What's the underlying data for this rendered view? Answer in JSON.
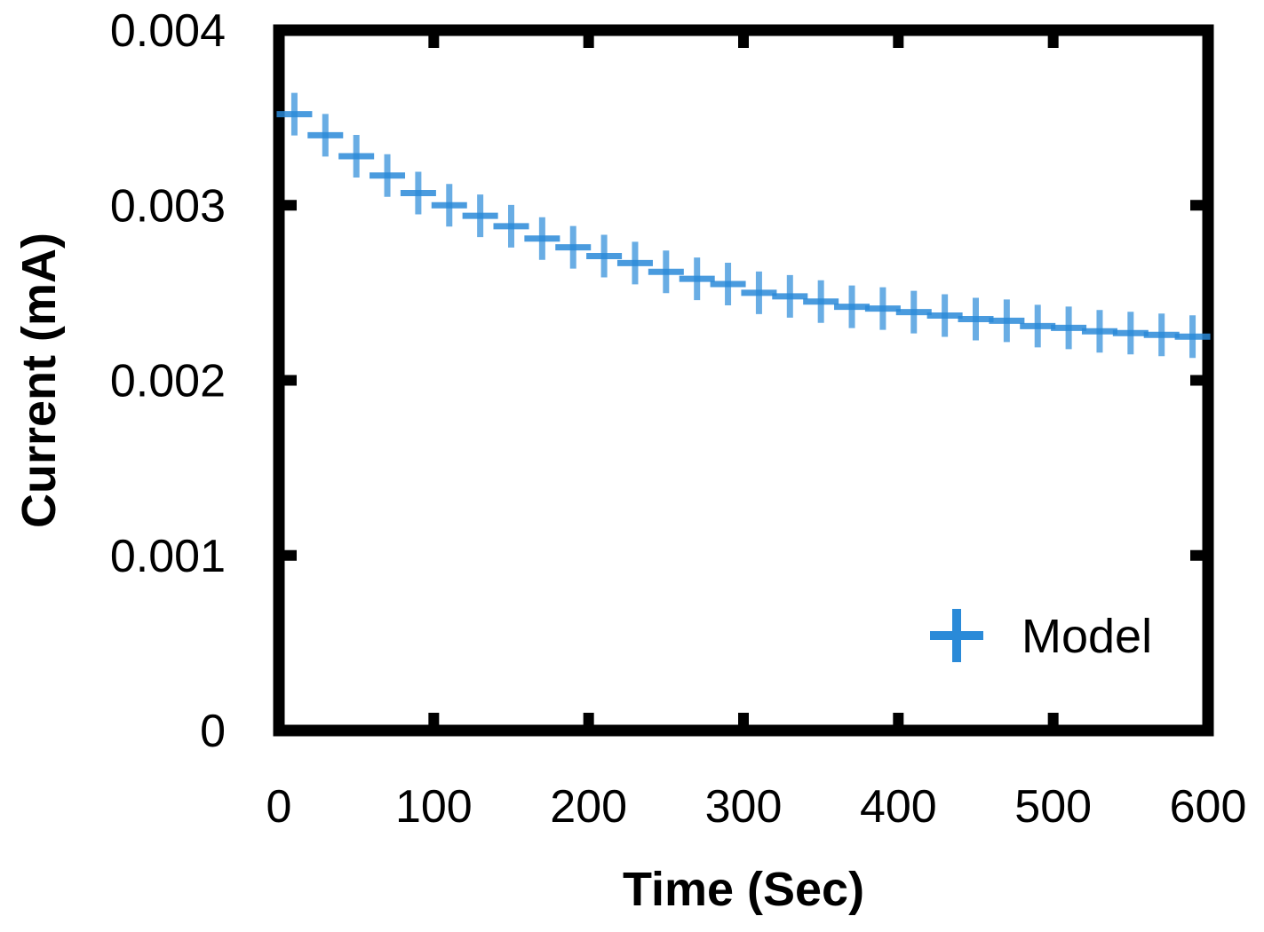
{
  "chart_data": {
    "type": "scatter",
    "title": "",
    "xlabel": "Time (Sec)",
    "ylabel": "Current (mA)",
    "xlim": [
      0,
      600
    ],
    "ylim": [
      0,
      0.004
    ],
    "xticks": [
      0,
      100,
      200,
      300,
      400,
      500,
      600
    ],
    "xtick_labels": [
      "0",
      "100",
      "200",
      "300",
      "400",
      "500",
      "600"
    ],
    "yticks": [
      0,
      0.001,
      0.002,
      0.003,
      0.004
    ],
    "ytick_labels": [
      "0",
      "0.001",
      "0.002",
      "0.003",
      "0.004"
    ],
    "grid": false,
    "legend_position": "bottom-right",
    "marker_color": "#2a8ad8",
    "series": [
      {
        "name": "Model",
        "marker": "plus",
        "x": [
          10,
          30,
          50,
          70,
          90,
          110,
          130,
          150,
          170,
          190,
          210,
          230,
          250,
          270,
          290,
          310,
          330,
          350,
          370,
          390,
          410,
          430,
          450,
          470,
          490,
          510,
          530,
          550,
          570,
          590
        ],
        "y": [
          0.00352,
          0.0034,
          0.00328,
          0.00317,
          0.00307,
          0.003,
          0.00294,
          0.00288,
          0.00281,
          0.00276,
          0.00271,
          0.00267,
          0.00262,
          0.00258,
          0.00255,
          0.0025,
          0.00248,
          0.00245,
          0.00242,
          0.00241,
          0.00239,
          0.00237,
          0.00235,
          0.00234,
          0.00231,
          0.0023,
          0.00228,
          0.00227,
          0.00226,
          0.00225
        ]
      }
    ]
  }
}
